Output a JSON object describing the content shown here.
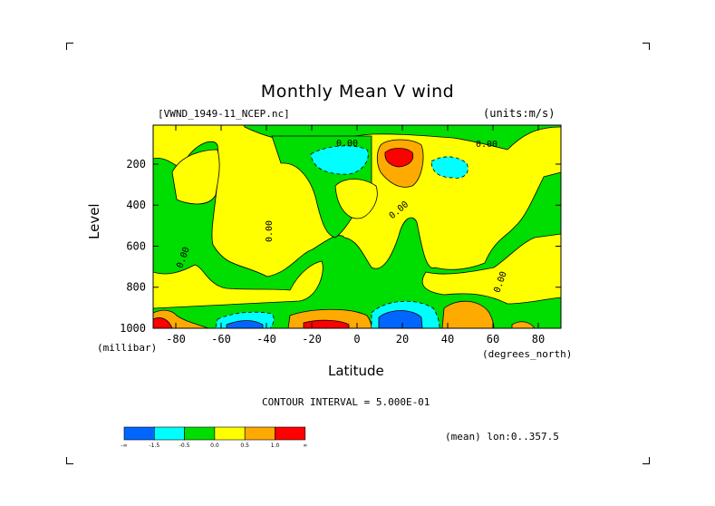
{
  "chart_data": {
    "type": "heatmap",
    "title": "Monthly Mean V wind",
    "dataset_label": "[VWND_1949-11_NCEP.nc]",
    "units_label": "(units:m/s)",
    "xlabel": "Latitude",
    "x_unit_label": "(degrees_north)",
    "ylabel": "Level",
    "y_unit_label": "(millibar)",
    "xlim": [
      -90,
      90
    ],
    "ylim": [
      1000,
      10
    ],
    "x_ticks": [
      -80,
      -60,
      -40,
      -20,
      0,
      20,
      40,
      60,
      80
    ],
    "y_ticks": [
      200,
      400,
      600,
      800,
      1000
    ],
    "contour_labels": [
      "0.00",
      "0.00",
      "0.00",
      "0.00",
      "0.00",
      "0.00"
    ],
    "contour_interval_text": "CONTOUR INTERVAL = 5.000E-01",
    "mean_text": "(mean) lon:0..357.5",
    "colorbar": {
      "levels": [
        "-∞",
        "-1.5",
        "-0.5",
        "0.0",
        "0.5",
        "1.0",
        "∞"
      ],
      "colors": [
        "#0066ff",
        "#00ffff",
        "#00dd00",
        "#ffff00",
        "#ffaa00",
        "#ff0000"
      ]
    },
    "colors": {
      "strong_negative": "#0066ff",
      "negative": "#00ffff",
      "weak_negative": "#00dd00",
      "weak_positive": "#ffff00",
      "positive": "#ffaa00",
      "strong_positive": "#ff0000"
    }
  }
}
